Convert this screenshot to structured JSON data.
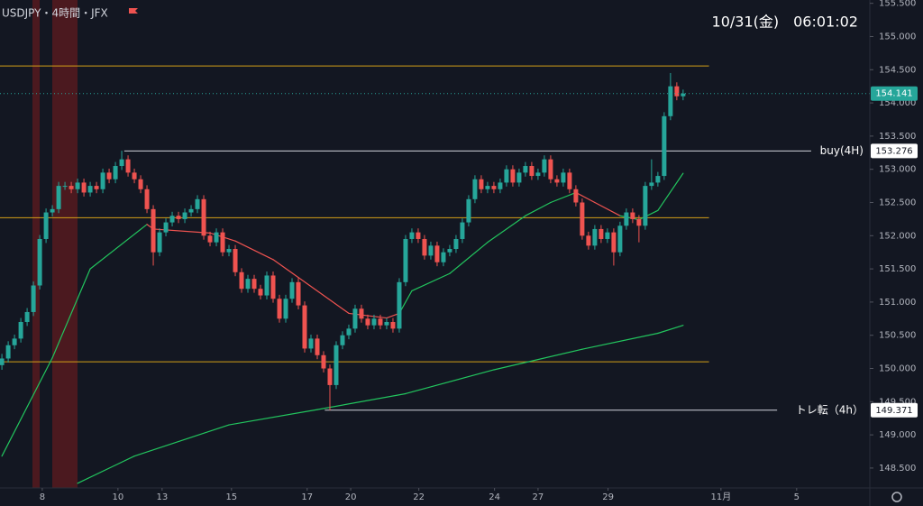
{
  "chart_data": {
    "type": "candlestick",
    "title": "USDJPY・4時間・JFX",
    "clock": "10/31(金)　06:01:02",
    "up_color": "#26a69a",
    "down_color": "#ef5350",
    "xlim": [
      -0.3,
      137.6
    ],
    "ylim": [
      148.2,
      155.55
    ],
    "yticks": [
      {
        "value": 155.5,
        "label": "155.500"
      },
      {
        "value": 155,
        "label": "155.000"
      },
      {
        "value": 154.5,
        "label": "154.500"
      },
      {
        "value": 154,
        "label": "154.000"
      },
      {
        "value": 153.5,
        "label": "153.500"
      },
      {
        "value": 153,
        "label": "153.000"
      },
      {
        "value": 152.5,
        "label": "152.500"
      },
      {
        "value": 152,
        "label": "152.000"
      },
      {
        "value": 151.5,
        "label": "151.500"
      },
      {
        "value": 151,
        "label": "151.000"
      },
      {
        "value": 150.5,
        "label": "150.500"
      },
      {
        "value": 150,
        "label": "150.000"
      },
      {
        "value": 149.5,
        "label": "149.500"
      },
      {
        "value": 149,
        "label": "149.000"
      },
      {
        "value": 148.5,
        "label": "148.500"
      }
    ],
    "xticks": [
      {
        "value": 6.4,
        "label": "8"
      },
      {
        "value": 18.4,
        "label": "10"
      },
      {
        "value": 25.4,
        "label": "13"
      },
      {
        "value": 36.4,
        "label": "15"
      },
      {
        "value": 48.4,
        "label": "17"
      },
      {
        "value": 55.3,
        "label": "20"
      },
      {
        "value": 66.1,
        "label": "22"
      },
      {
        "value": 78.1,
        "label": "24"
      },
      {
        "value": 85,
        "label": "27"
      },
      {
        "value": 96.1,
        "label": "29"
      },
      {
        "value": 114,
        "label": "11月"
      },
      {
        "value": 126,
        "label": "5"
      }
    ],
    "ohlc": [
      [
        150.05,
        150.22,
        149.98,
        150.15
      ],
      [
        150.15,
        150.41,
        150.09,
        150.35
      ],
      [
        150.35,
        150.51,
        150.29,
        150.45
      ],
      [
        150.45,
        150.76,
        150.39,
        150.7
      ],
      [
        150.7,
        150.91,
        150.64,
        150.85
      ],
      [
        150.85,
        151.31,
        150.79,
        151.25
      ],
      [
        151.25,
        152.01,
        151.19,
        151.95
      ],
      [
        151.95,
        152.41,
        151.89,
        152.35
      ],
      [
        152.35,
        152.46,
        152.29,
        152.4
      ],
      [
        152.4,
        152.81,
        152.34,
        152.75
      ],
      [
        152.75,
        152.81,
        152.69,
        152.75
      ],
      [
        152.75,
        152.81,
        152.64,
        152.7
      ],
      [
        152.7,
        152.86,
        152.64,
        152.8
      ],
      [
        152.8,
        152.86,
        152.59,
        152.65
      ],
      [
        152.65,
        152.81,
        152.59,
        152.75
      ],
      [
        152.75,
        152.81,
        152.64,
        152.7
      ],
      [
        152.7,
        153.01,
        152.64,
        152.95
      ],
      [
        152.95,
        153.01,
        152.79,
        152.85
      ],
      [
        152.85,
        153.11,
        152.79,
        153.05
      ],
      [
        153.05,
        153.28,
        152.99,
        153.15
      ],
      [
        153.15,
        153.21,
        152.89,
        152.95
      ],
      [
        152.95,
        153.01,
        152.79,
        152.85
      ],
      [
        152.85,
        152.91,
        152.64,
        152.7
      ],
      [
        152.7,
        152.76,
        152.34,
        152.4
      ],
      [
        152.4,
        152.46,
        151.55,
        151.75
      ],
      [
        151.75,
        152.11,
        151.69,
        152.05
      ],
      [
        152.05,
        152.26,
        151.99,
        152.2
      ],
      [
        152.2,
        152.36,
        152.14,
        152.3
      ],
      [
        152.3,
        152.36,
        152.19,
        152.25
      ],
      [
        152.25,
        152.41,
        152.19,
        152.35
      ],
      [
        152.35,
        152.46,
        152.29,
        152.4
      ],
      [
        152.4,
        152.61,
        152.34,
        152.55
      ],
      [
        152.55,
        152.61,
        151.94,
        152
      ],
      [
        152,
        152.06,
        151.84,
        151.9
      ],
      [
        151.9,
        152.11,
        151.84,
        152.05
      ],
      [
        152.05,
        152.11,
        151.69,
        151.75
      ],
      [
        151.75,
        151.86,
        151.69,
        151.8
      ],
      [
        151.8,
        151.86,
        151.39,
        151.45
      ],
      [
        151.45,
        151.51,
        151.14,
        151.2
      ],
      [
        151.2,
        151.41,
        151.14,
        151.35
      ],
      [
        151.35,
        151.41,
        151.14,
        151.2
      ],
      [
        151.2,
        151.26,
        151.04,
        151.1
      ],
      [
        151.1,
        151.46,
        151.04,
        151.4
      ],
      [
        151.4,
        151.46,
        150.99,
        151.05
      ],
      [
        151.05,
        151.11,
        150.69,
        150.75
      ],
      [
        150.75,
        151.11,
        150.69,
        151.05
      ],
      [
        151.05,
        151.36,
        150.99,
        151.3
      ],
      [
        151.3,
        151.36,
        150.89,
        150.95
      ],
      [
        150.95,
        151.01,
        150.24,
        150.3
      ],
      [
        150.3,
        150.51,
        150.24,
        150.45
      ],
      [
        150.45,
        150.51,
        150.14,
        150.2
      ],
      [
        150.2,
        150.26,
        149.94,
        150
      ],
      [
        150,
        150.06,
        149.37,
        149.75
      ],
      [
        149.75,
        150.41,
        149.69,
        150.35
      ],
      [
        150.35,
        150.56,
        150.29,
        150.5
      ],
      [
        150.5,
        150.66,
        150.44,
        150.6
      ],
      [
        150.6,
        150.96,
        150.54,
        150.9
      ],
      [
        150.9,
        150.96,
        150.69,
        150.75
      ],
      [
        150.75,
        150.81,
        150.59,
        150.65
      ],
      [
        150.65,
        150.81,
        150.59,
        150.75
      ],
      [
        150.75,
        150.81,
        150.59,
        150.65
      ],
      [
        150.65,
        150.76,
        150.59,
        150.7
      ],
      [
        150.7,
        150.76,
        150.54,
        150.6
      ],
      [
        150.6,
        151.36,
        150.54,
        151.3
      ],
      [
        151.3,
        152.01,
        151.24,
        151.95
      ],
      [
        151.95,
        152.11,
        151.89,
        152.05
      ],
      [
        152.05,
        152.11,
        151.89,
        151.95
      ],
      [
        151.95,
        152.01,
        151.64,
        151.7
      ],
      [
        151.7,
        151.91,
        151.64,
        151.85
      ],
      [
        151.85,
        151.91,
        151.54,
        151.6
      ],
      [
        151.6,
        151.81,
        151.54,
        151.75
      ],
      [
        151.75,
        151.86,
        151.69,
        151.8
      ],
      [
        151.8,
        152.01,
        151.74,
        151.95
      ],
      [
        151.95,
        152.26,
        151.89,
        152.2
      ],
      [
        152.2,
        152.61,
        152.14,
        152.55
      ],
      [
        152.55,
        152.91,
        152.49,
        152.85
      ],
      [
        152.85,
        152.91,
        152.64,
        152.7
      ],
      [
        152.7,
        152.81,
        152.64,
        152.75
      ],
      [
        152.75,
        152.81,
        152.64,
        152.7
      ],
      [
        152.7,
        152.86,
        152.64,
        152.8
      ],
      [
        152.8,
        153.06,
        152.74,
        153
      ],
      [
        153,
        153.06,
        152.74,
        152.8
      ],
      [
        152.8,
        153.01,
        152.74,
        152.95
      ],
      [
        152.95,
        153.11,
        152.89,
        153.05
      ],
      [
        153.05,
        153.11,
        152.84,
        152.9
      ],
      [
        152.9,
        153.01,
        152.84,
        152.95
      ],
      [
        152.95,
        153.21,
        152.89,
        153.15
      ],
      [
        153.15,
        153.21,
        152.79,
        152.85
      ],
      [
        152.85,
        152.91,
        152.74,
        152.8
      ],
      [
        152.8,
        153.01,
        152.74,
        152.95
      ],
      [
        152.95,
        153.01,
        152.64,
        152.7
      ],
      [
        152.7,
        152.76,
        152.44,
        152.5
      ],
      [
        152.5,
        152.56,
        151.94,
        152
      ],
      [
        152,
        152.06,
        151.79,
        151.85
      ],
      [
        151.85,
        152.16,
        151.79,
        152.1
      ],
      [
        152.1,
        152.16,
        151.89,
        151.95
      ],
      [
        151.95,
        152.11,
        151.89,
        152.05
      ],
      [
        152.05,
        152.11,
        151.55,
        151.75
      ],
      [
        151.75,
        152.21,
        151.69,
        152.15
      ],
      [
        152.15,
        152.41,
        152.09,
        152.35
      ],
      [
        152.35,
        152.41,
        152.19,
        152.25
      ],
      [
        152.25,
        152.31,
        151.9,
        152.15
      ],
      [
        152.15,
        152.81,
        152.09,
        152.75
      ],
      [
        152.75,
        153.15,
        152.69,
        152.8
      ],
      [
        152.8,
        152.96,
        152.74,
        152.9
      ],
      [
        152.9,
        153.86,
        152.84,
        153.8
      ],
      [
        153.8,
        154.45,
        153.74,
        154.25
      ],
      [
        154.25,
        154.31,
        154.04,
        154.1
      ],
      [
        154.1,
        154.2,
        154.04,
        154.141
      ]
    ],
    "lines": [
      {
        "x": [
          0,
          8,
          14,
          23,
          24,
          33,
          37,
          43,
          47,
          51,
          55,
          61,
          63,
          65,
          71,
          77,
          83,
          87,
          91,
          94,
          98,
          101,
          104,
          108
        ],
        "values": [
          148.68,
          150.16,
          151.5,
          152.17,
          152.1,
          152.04,
          151.92,
          151.64,
          151.37,
          151.1,
          150.83,
          150.76,
          150.83,
          151.17,
          151.43,
          151.9,
          152.3,
          152.5,
          152.65,
          152.5,
          152.3,
          152.24,
          152.38,
          152.94
        ],
        "colors": [
          "#22c55e",
          "#22c55e",
          "#22c55e",
          "#ef5350",
          "#ef5350",
          "#ef5350",
          "#ef5350",
          "#ef5350",
          "#ef5350",
          "#ef5350",
          "#ef5350",
          "#ef5350",
          "#22c55e",
          "#22c55e",
          "#22c55e",
          "#22c55e",
          "#22c55e",
          "#22c55e",
          "#ef5350",
          "#ef5350",
          "#22c55e",
          "#22c55e",
          "#22c55e",
          "#22c55e"
        ]
      },
      {
        "x": [
          12,
          21,
          36,
          50,
          64,
          78,
          92,
          104,
          108
        ],
        "values": [
          148.27,
          148.68,
          149.15,
          149.38,
          149.62,
          149.98,
          150.29,
          150.53,
          150.65
        ],
        "colors": [
          "#22c55e",
          "#22c55e",
          "#22c55e",
          "#22c55e",
          "#22c55e",
          "#22c55e",
          "#22c55e",
          "#22c55e",
          "#22c55e"
        ]
      }
    ],
    "levels": [
      {
        "value": 154.556,
        "from": -0.3,
        "to": 112.1,
        "color": "#d4a017"
      },
      {
        "value": 152.27,
        "from": -0.3,
        "to": 112.1,
        "color": "#d4a017"
      },
      {
        "value": 150.1,
        "from": -0.3,
        "to": 112.1,
        "color": "#d4a017"
      },
      {
        "value": 153.276,
        "from": 19.4,
        "to": 128.3,
        "color": "#d1d4dc",
        "label": "buy(4H)"
      },
      {
        "value": 149.371,
        "from": 51.2,
        "to": 122.9,
        "color": "#d1d4dc",
        "label": "トレ転（4h）"
      }
    ],
    "last_price": 154.141
  }
}
